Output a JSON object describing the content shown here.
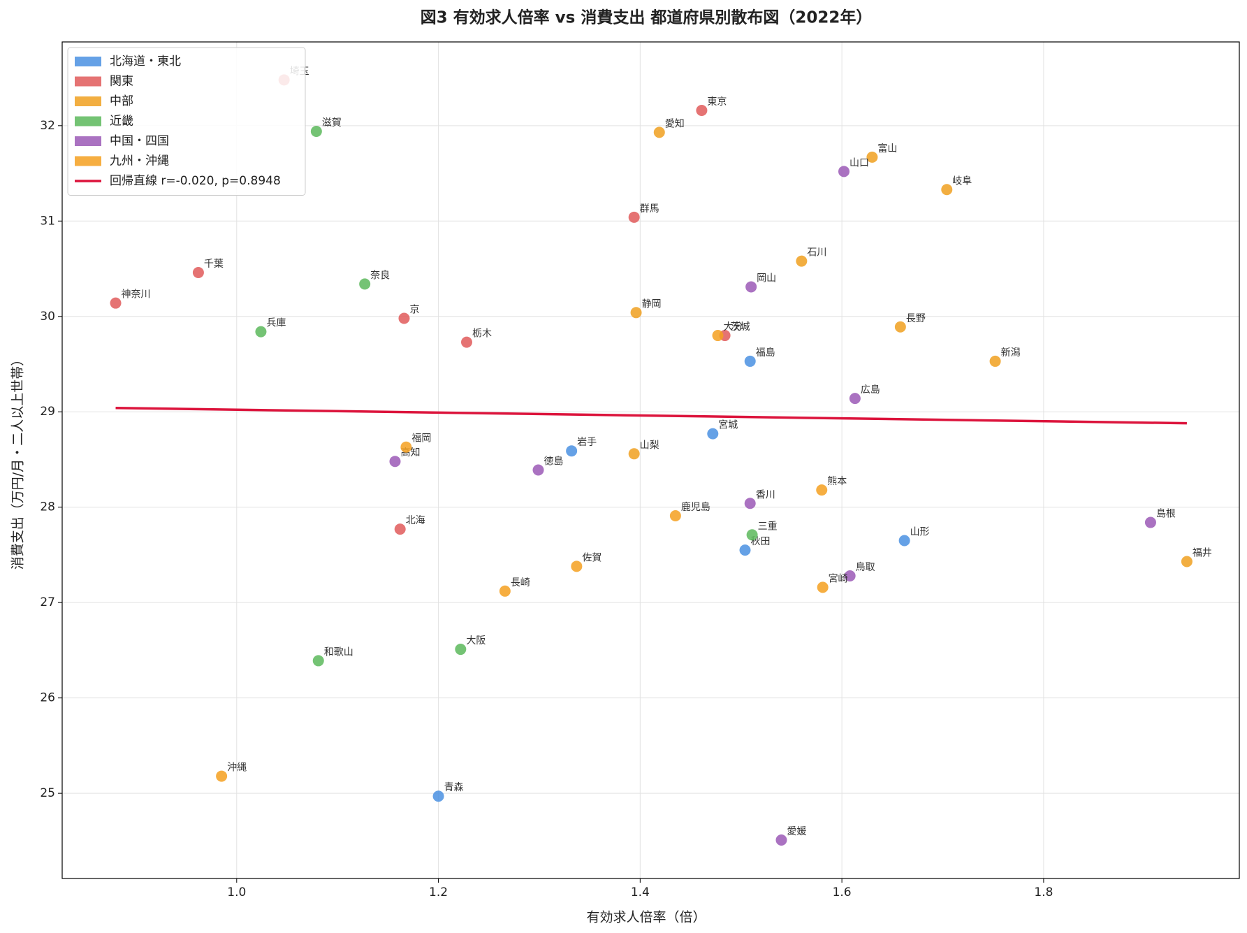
{
  "chart_data": {
    "type": "scatter",
    "title": "図3 有効求人倍率 vs 消費支出 都道府県別散布図（2022年）",
    "xlabel": "有効求人倍率（倍）",
    "ylabel": "消費支出（万円/月・二人以上世帯）",
    "xlim": [
      0.827,
      1.994
    ],
    "ylim": [
      24.107,
      32.878
    ],
    "xticks": [
      {
        "value": 1,
        "label": "1.0"
      },
      1.2,
      1.4,
      1.6,
      1.8
    ],
    "yticks": [
      25,
      26,
      27,
      28,
      29,
      30,
      31,
      32
    ],
    "grid": true,
    "legend": "upper left",
    "series": [
      {
        "name": "北海道・東北",
        "color": "#4a90e2",
        "x": [
          1.332,
          1.472,
          1.509,
          1.662,
          1.504,
          1.2
        ],
        "values": [
          28.59,
          28.77,
          29.53,
          27.65,
          27.55,
          24.97
        ],
        "labels": [
          "岩手",
          "宮城",
          "福島",
          "山形",
          "秋田",
          "青森"
        ]
      },
      {
        "name": "関東",
        "color": "#e05a5a",
        "x": [
          1.047,
          1.461,
          1.394,
          0.962,
          0.88,
          1.166,
          1.228,
          1.484,
          1.162
        ],
        "values": [
          32.48,
          32.16,
          31.04,
          30.46,
          30.14,
          29.98,
          29.73,
          29.8,
          27.77
        ],
        "labels": [
          "埼玉",
          "東京",
          "群馬",
          "千葉",
          "神奈川",
          "京",
          "栃木",
          "茨城",
          "北海"
        ]
      },
      {
        "name": "中部",
        "color": "#f0a020",
        "x": [
          1.419,
          1.63,
          1.704,
          1.56,
          1.396,
          1.658,
          1.752,
          1.394,
          1.942
        ],
        "values": [
          31.93,
          31.67,
          31.33,
          30.58,
          30.04,
          29.89,
          29.53,
          28.56,
          27.43
        ],
        "labels": [
          "愛知",
          "富山",
          "岐阜",
          "石川",
          "静岡",
          "長野",
          "新潟",
          "山梨",
          "福井"
        ]
      },
      {
        "name": "近畿",
        "color": "#5cb85c",
        "x": [
          1.079,
          1.127,
          1.024,
          1.511,
          1.222,
          1.081
        ],
        "values": [
          31.94,
          30.34,
          29.84,
          27.71,
          26.51,
          26.39
        ],
        "labels": [
          "滋賀",
          "奈良",
          "兵庫",
          "三重",
          "大阪",
          "和歌山"
        ]
      },
      {
        "name": "中国・四国",
        "color": "#9b59b6",
        "x": [
          1.602,
          1.51,
          1.613,
          1.157,
          1.299,
          1.509,
          1.608,
          1.906,
          1.54
        ],
        "values": [
          31.52,
          30.31,
          29.14,
          28.48,
          28.39,
          28.04,
          27.28,
          27.84,
          24.51
        ],
        "labels": [
          "山口",
          "岡山",
          "広島",
          "高知",
          "徳島",
          "香川",
          "鳥取",
          "島根",
          "愛媛"
        ]
      },
      {
        "name": "九州・沖縄",
        "color": "#f5a020",
        "x": [
          1.477,
          1.168,
          1.58,
          1.435,
          1.337,
          1.266,
          1.581,
          0.985
        ],
        "values": [
          29.8,
          28.63,
          28.18,
          27.91,
          27.38,
          27.12,
          27.16,
          25.18
        ],
        "labels": [
          "大分",
          "福岡",
          "熊本",
          "鹿児島",
          "佐賀",
          "長崎",
          "宮崎",
          "沖縄"
        ]
      }
    ],
    "regression": {
      "name": "回帰直線 r=-0.020, p=0.8948",
      "color": "#dc143c",
      "x": [
        0.88,
        1.942
      ],
      "values": [
        29.04,
        28.88
      ]
    }
  }
}
